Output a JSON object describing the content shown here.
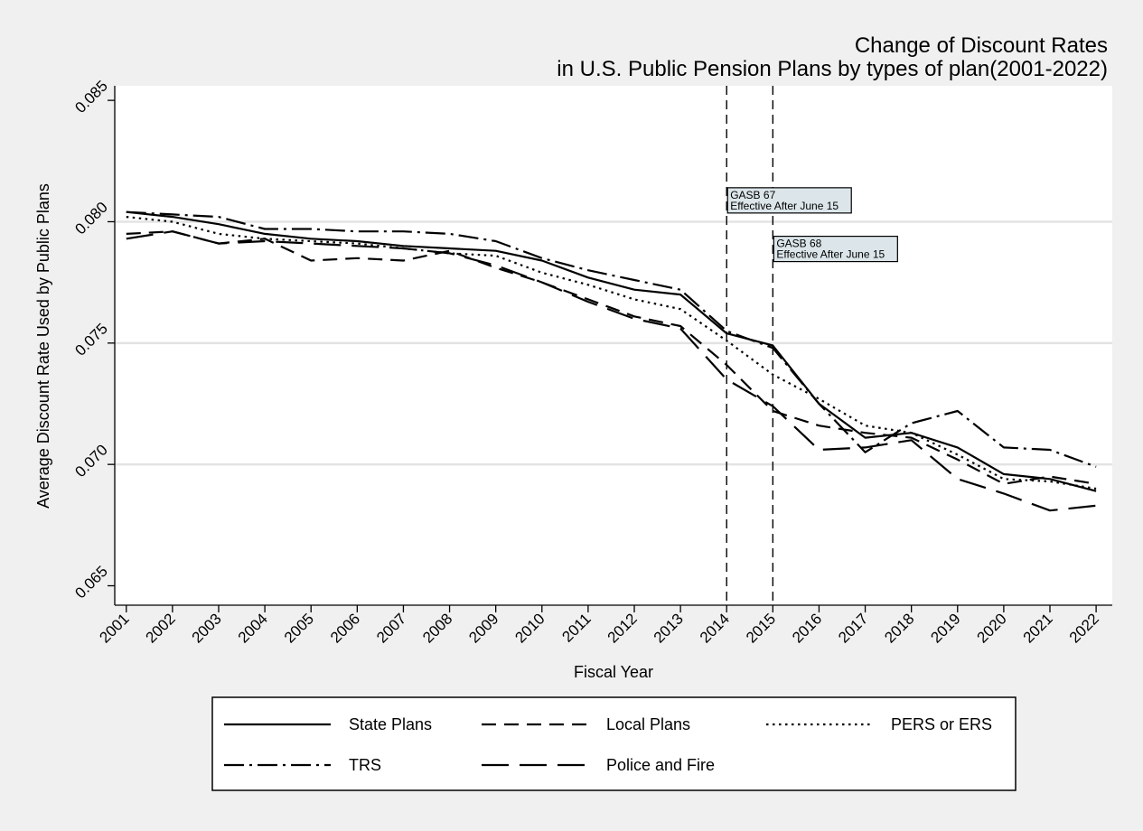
{
  "chart_data": {
    "type": "line",
    "title": [
      "Change of Discount Rates",
      "in U.S. Public Pension Plans by types of plan(2001-2022)"
    ],
    "xlabel": "Fiscal Year",
    "ylabel": "Average Discount Rate Used by Public Plans",
    "x": [
      2001,
      2002,
      2003,
      2004,
      2005,
      2006,
      2007,
      2008,
      2009,
      2010,
      2011,
      2012,
      2013,
      2014,
      2015,
      2016,
      2017,
      2018,
      2019,
      2020,
      2021,
      2022
    ],
    "xticks": [
      "2001",
      "2002",
      "2003",
      "2004",
      "2005",
      "2006",
      "2007",
      "2008",
      "2009",
      "2010",
      "2011",
      "2012",
      "2013",
      "2014",
      "2015",
      "2016",
      "2017",
      "2018",
      "2019",
      "2020",
      "2021",
      "2022"
    ],
    "yticks": [
      "0.065",
      "0.070",
      "0.075",
      "0.080",
      "0.085"
    ],
    "ylim": [
      0.0642,
      0.0856
    ],
    "xlim": [
      2000.75,
      2022.35
    ],
    "grid": "horizontal",
    "legend_position": "bottom",
    "series": [
      {
        "name": "State Plans",
        "style": "solid",
        "values": [
          0.0804,
          0.0802,
          0.0799,
          0.0795,
          0.0793,
          0.0792,
          0.079,
          0.0789,
          0.0788,
          0.0784,
          0.0777,
          0.0772,
          0.077,
          0.0754,
          0.0749,
          0.0725,
          0.0711,
          0.0713,
          0.0707,
          0.0696,
          0.0694,
          0.0689
        ]
      },
      {
        "name": "Local Plans",
        "style": "dash",
        "values": [
          0.0795,
          0.0796,
          0.0791,
          0.0793,
          0.0784,
          0.0785,
          0.0784,
          0.0788,
          0.0781,
          0.0775,
          0.0768,
          0.0761,
          0.0757,
          0.0741,
          0.0722,
          0.0716,
          0.0713,
          0.0711,
          0.0702,
          0.0692,
          0.0695,
          0.0692
        ]
      },
      {
        "name": "PERS or ERS",
        "style": "dot",
        "values": [
          0.0802,
          0.08,
          0.0795,
          0.0793,
          0.0792,
          0.0791,
          0.0789,
          0.0787,
          0.0786,
          0.0779,
          0.0774,
          0.0768,
          0.0764,
          0.0751,
          0.0737,
          0.0727,
          0.0716,
          0.0713,
          0.0704,
          0.0694,
          0.0693,
          0.069
        ]
      },
      {
        "name": "TRS",
        "style": "dashdot",
        "values": [
          0.0804,
          0.0803,
          0.0802,
          0.0797,
          0.0797,
          0.0796,
          0.0796,
          0.0795,
          0.0792,
          0.0785,
          0.078,
          0.0776,
          0.0772,
          0.0755,
          0.0748,
          0.0725,
          0.0705,
          0.0717,
          0.0722,
          0.0707,
          0.0706,
          0.0699
        ]
      },
      {
        "name": "Police and Fire",
        "style": "longdash",
        "values": [
          0.0793,
          0.0796,
          0.0791,
          0.0792,
          0.0791,
          0.079,
          0.0789,
          0.0787,
          0.0782,
          0.0775,
          0.0767,
          0.076,
          0.0756,
          0.0735,
          0.0724,
          0.0706,
          0.0707,
          0.071,
          0.0694,
          0.0688,
          0.0681,
          0.0683
        ]
      }
    ],
    "reference_lines": [
      {
        "x": 2014,
        "label": [
          "GASB 67",
          "Effective After June 15"
        ],
        "label_y": 0.0814
      },
      {
        "x": 2015,
        "label": [
          "GASB 68",
          "Effective After June 15"
        ],
        "label_y": 0.0794
      }
    ],
    "colors": {
      "background": "#f0f0f0",
      "plot_area": "#ffffff",
      "gridline": "#e3e3e3",
      "line": "#000000",
      "annotation_fill": "#dce6ea"
    }
  }
}
